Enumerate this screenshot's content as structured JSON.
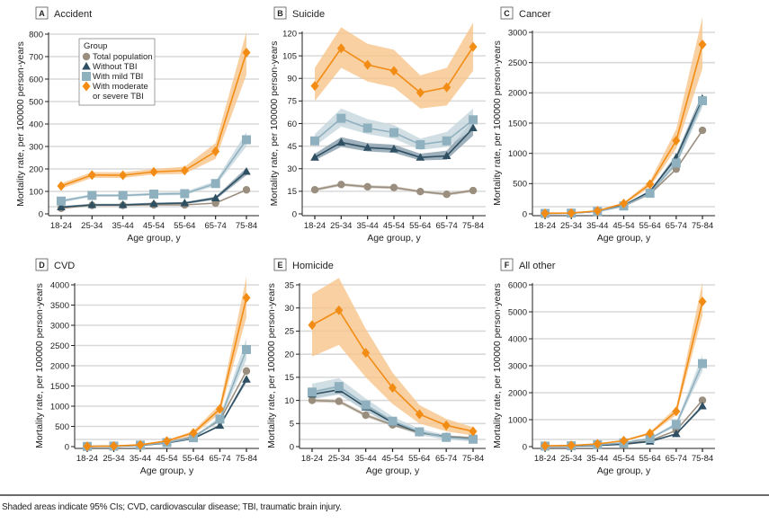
{
  "figure": {
    "footnote": "Shaded areas indicate 95% CIs; CVD, cardiovascular disease; TBI, traumatic brain injury.",
    "legend": {
      "title": "Group",
      "entries": [
        {
          "key": "total",
          "label": "Total population",
          "marker": "circle",
          "color": "#9a8e7e"
        },
        {
          "key": "without",
          "label": "Without TBI",
          "marker": "triangle",
          "color": "#2f4f62"
        },
        {
          "key": "mild",
          "label": "With mild TBI",
          "marker": "square",
          "color": "#8fb0be"
        },
        {
          "key": "modsev",
          "label": "With moderate",
          "label2": "or severe TBI",
          "marker": "diamond",
          "color": "#f28c14"
        }
      ]
    },
    "colors": {
      "total": "#9a8e7e",
      "without": "#2f4f62",
      "mild": "#8fb0be",
      "modsev": "#f28c14",
      "band_modsev": "#f8c48a",
      "band_mild": "#c5d7df",
      "band_without": "#7c96a4",
      "gridline": "#d9d9d9"
    }
  },
  "chart_data": [
    {
      "panel": "A",
      "type": "line",
      "title": "Accident",
      "xlabel": "Age group, y",
      "ylabel": "Mortality rate, per 100000 person-years",
      "categories": [
        "18-24",
        "25-34",
        "35-44",
        "45-54",
        "55-64",
        "65-74",
        "75-84"
      ],
      "ylim": [
        0,
        800
      ],
      "yticks": [
        0,
        100,
        200,
        300,
        400,
        500,
        600,
        700,
        800
      ],
      "grid": true,
      "legend": "top-left",
      "series": [
        {
          "key": "total",
          "name": "Total population",
          "values": [
            25,
            38,
            38,
            40,
            40,
            48,
            107
          ]
        },
        {
          "key": "without",
          "name": "Without TBI",
          "values": [
            30,
            40,
            40,
            45,
            48,
            70,
            188
          ],
          "ci_low": [
            25,
            36,
            36,
            40,
            43,
            63,
            172
          ],
          "ci_high": [
            35,
            45,
            45,
            50,
            53,
            77,
            205
          ]
        },
        {
          "key": "mild",
          "name": "With mild TBI",
          "values": [
            57,
            82,
            82,
            88,
            90,
            135,
            330
          ],
          "ci_low": [
            50,
            76,
            76,
            82,
            84,
            124,
            300
          ],
          "ci_high": [
            64,
            88,
            88,
            94,
            98,
            146,
            365
          ]
        },
        {
          "key": "modsev",
          "name": "With moderate or severe TBI",
          "values": [
            124,
            173,
            172,
            187,
            193,
            278,
            718
          ],
          "ci_low": [
            112,
            160,
            160,
            175,
            178,
            245,
            620
          ],
          "ci_high": [
            136,
            186,
            185,
            200,
            210,
            315,
            810
          ]
        }
      ]
    },
    {
      "panel": "B",
      "type": "line",
      "title": "Suicide",
      "xlabel": "Age group, y",
      "ylabel": "Mortality rate, per 100000 person-years",
      "categories": [
        "18-24",
        "25-34",
        "35-44",
        "45-54",
        "55-64",
        "65-74",
        "75-84"
      ],
      "ylim": [
        0,
        120
      ],
      "yticks": [
        0,
        15,
        30,
        45,
        60,
        75,
        90,
        105,
        120
      ],
      "grid": true,
      "series": [
        {
          "key": "total",
          "name": "Total population",
          "values": [
            16,
            19.5,
            18,
            17.5,
            14.8,
            13,
            15.5
          ],
          "ci_low": [
            15,
            18.5,
            17,
            16.5,
            14,
            12,
            14.5
          ],
          "ci_high": [
            17,
            20.5,
            19,
            18.5,
            15.6,
            14,
            16.5
          ]
        },
        {
          "key": "without",
          "name": "Without TBI",
          "values": [
            37.5,
            47.5,
            44,
            43,
            37.5,
            38.5,
            57
          ],
          "ci_low": [
            35.5,
            44.5,
            41.5,
            40.5,
            35.5,
            36,
            52
          ],
          "ci_high": [
            40,
            51,
            47,
            46,
            40,
            42,
            62
          ]
        },
        {
          "key": "mild",
          "name": "With mild TBI",
          "values": [
            48.5,
            63.5,
            57,
            54,
            46,
            48.5,
            62.5
          ],
          "ci_low": [
            45,
            58,
            53,
            50,
            42.5,
            44.5,
            56
          ],
          "ci_high": [
            53,
            70,
            63,
            59,
            50,
            54.5,
            70
          ]
        },
        {
          "key": "modsev",
          "name": "With moderate or severe TBI",
          "values": [
            85,
            110,
            99,
            95,
            80.5,
            84,
            111
          ],
          "ci_low": [
            75,
            97,
            88,
            84,
            70,
            72,
            95
          ],
          "ci_high": [
            97,
            124,
            113,
            109,
            92,
            97,
            127
          ]
        }
      ]
    },
    {
      "panel": "C",
      "type": "line",
      "title": "Cancer",
      "xlabel": "Age group, y",
      "ylabel": "Mortality rate, per 100000 person-years",
      "categories": [
        "18-24",
        "25-34",
        "35-44",
        "45-54",
        "55-64",
        "65-74",
        "75-84"
      ],
      "ylim": [
        0,
        3000
      ],
      "yticks": [
        0,
        500,
        1000,
        1500,
        2000,
        2500,
        3000
      ],
      "grid": true,
      "series": [
        {
          "key": "total",
          "name": "Total population",
          "values": [
            8,
            12,
            40,
            130,
            330,
            740,
            1380
          ]
        },
        {
          "key": "without",
          "name": "Without TBI",
          "values": [
            8,
            12,
            42,
            140,
            370,
            930,
            1900
          ],
          "ci_low": [
            6,
            10,
            38,
            130,
            350,
            880,
            1800
          ],
          "ci_high": [
            10,
            14,
            46,
            150,
            390,
            980,
            2000
          ]
        },
        {
          "key": "mild",
          "name": "With mild TBI",
          "values": [
            8,
            12,
            40,
            130,
            340,
            840,
            1870
          ],
          "ci_low": [
            6,
            10,
            35,
            120,
            320,
            790,
            1760
          ],
          "ci_high": [
            10,
            14,
            45,
            140,
            360,
            890,
            1980
          ]
        },
        {
          "key": "modsev",
          "name": "With moderate or severe TBI",
          "values": [
            10,
            14,
            50,
            170,
            490,
            1210,
            2800
          ],
          "ci_low": [
            7,
            11,
            42,
            150,
            440,
            1080,
            2400
          ],
          "ci_high": [
            13,
            17,
            58,
            190,
            540,
            1400,
            3250
          ]
        }
      ]
    },
    {
      "panel": "D",
      "type": "line",
      "title": "CVD",
      "xlabel": "Age group, y",
      "ylabel": "Mortality rate, per 100000 person-years",
      "categories": [
        "18-24",
        "25-34",
        "35-44",
        "45-54",
        "55-64",
        "65-74",
        "75-84"
      ],
      "ylim": [
        0,
        4000
      ],
      "yticks": [
        0,
        500,
        1000,
        1500,
        2000,
        2500,
        3000,
        3500,
        4000
      ],
      "grid": true,
      "series": [
        {
          "key": "total",
          "name": "Total population",
          "values": [
            5,
            12,
            35,
            100,
            250,
            650,
            1870
          ]
        },
        {
          "key": "without",
          "name": "Without TBI",
          "values": [
            4,
            10,
            30,
            90,
            200,
            520,
            1660
          ],
          "ci_low": [
            3,
            8,
            26,
            84,
            188,
            495,
            1590
          ],
          "ci_high": [
            5,
            12,
            34,
            96,
            212,
            545,
            1730
          ]
        },
        {
          "key": "mild",
          "name": "With mild TBI",
          "values": [
            5,
            12,
            35,
            100,
            220,
            680,
            2400
          ],
          "ci_low": [
            3,
            9,
            30,
            90,
            200,
            620,
            2150
          ],
          "ci_high": [
            7,
            15,
            40,
            110,
            240,
            740,
            2680
          ]
        },
        {
          "key": "modsev",
          "name": "With moderate or severe TBI",
          "values": [
            8,
            16,
            45,
            140,
            340,
            930,
            3680
          ],
          "ci_low": [
            5,
            12,
            36,
            120,
            290,
            820,
            3200
          ],
          "ci_high": [
            11,
            20,
            54,
            160,
            390,
            1050,
            4200
          ]
        }
      ]
    },
    {
      "panel": "E",
      "type": "line",
      "title": "Homicide",
      "xlabel": "Age group, y",
      "ylabel": "Mortality rate, per 100000 person-years",
      "categories": [
        "18-24",
        "25-34",
        "35-44",
        "45-54",
        "55-64",
        "65-74",
        "75-84"
      ],
      "ylim": [
        0,
        35
      ],
      "yticks": [
        0,
        5,
        10,
        15,
        20,
        25,
        30,
        35
      ],
      "grid": true,
      "series": [
        {
          "key": "total",
          "name": "Total population",
          "values": [
            10,
            9.8,
            6.8,
            4.7,
            3.0,
            2.2,
            1.9
          ],
          "ci_low": [
            9.6,
            9.4,
            6.4,
            4.4,
            2.8,
            2.0,
            1.7
          ],
          "ci_high": [
            10.4,
            10.2,
            7.2,
            5.0,
            3.2,
            2.4,
            2.1
          ]
        },
        {
          "key": "without",
          "name": "Without TBI",
          "values": [
            11.3,
            12.3,
            8.5,
            5.2,
            3.1,
            2.1,
            1.6
          ],
          "ci_low": [
            10.5,
            11.3,
            7.8,
            4.7,
            2.8,
            1.8,
            1.3
          ],
          "ci_high": [
            12.1,
            13.3,
            9.2,
            5.7,
            3.4,
            2.4,
            1.9
          ]
        },
        {
          "key": "mild",
          "name": "With mild TBI",
          "values": [
            11.8,
            13,
            9,
            5.5,
            3.2,
            2.0,
            1.6
          ],
          "ci_low": [
            10.2,
            11.3,
            7.6,
            4.5,
            2.5,
            1.5,
            1.1
          ],
          "ci_high": [
            13.6,
            14.8,
            10.4,
            6.5,
            3.9,
            2.5,
            2.1
          ]
        },
        {
          "key": "modsev",
          "name": "With moderate or severe TBI",
          "values": [
            26.3,
            29.5,
            20.3,
            12.7,
            7.0,
            4.6,
            3.3
          ],
          "ci_low": [
            19.5,
            22,
            15,
            9.2,
            5.0,
            3.3,
            2.4
          ],
          "ci_high": [
            33,
            36.5,
            25.5,
            16,
            9.0,
            6.0,
            4.2
          ]
        }
      ]
    },
    {
      "panel": "F",
      "type": "line",
      "title": "All other",
      "xlabel": "Age group, y",
      "ylabel": "Mortality rate, per 100000 person-years",
      "categories": [
        "18-24",
        "25-34",
        "35-44",
        "45-54",
        "55-64",
        "65-74",
        "75-84"
      ],
      "ylim": [
        0,
        6000
      ],
      "yticks": [
        0,
        1000,
        2000,
        3000,
        4000,
        5000,
        6000
      ],
      "grid": true,
      "series": [
        {
          "key": "total",
          "name": "Total population",
          "values": [
            15,
            25,
            55,
            110,
            220,
            600,
            1720
          ]
        },
        {
          "key": "without",
          "name": "Without TBI",
          "values": [
            12,
            20,
            45,
            90,
            190,
            470,
            1500
          ],
          "ci_low": [
            10,
            17,
            40,
            82,
            178,
            445,
            1430
          ],
          "ci_high": [
            14,
            23,
            50,
            98,
            202,
            495,
            1570
          ]
        },
        {
          "key": "mild",
          "name": "With mild TBI",
          "values": [
            20,
            30,
            70,
            140,
            300,
            820,
            3080
          ],
          "ci_low": [
            16,
            25,
            60,
            125,
            270,
            740,
            2800
          ],
          "ci_high": [
            24,
            35,
            80,
            155,
            330,
            900,
            3400
          ]
        },
        {
          "key": "modsev",
          "name": "With moderate or severe TBI",
          "values": [
            30,
            45,
            100,
            220,
            490,
            1310,
            5380
          ],
          "ci_low": [
            24,
            38,
            86,
            195,
            440,
            1170,
            4850
          ],
          "ci_high": [
            36,
            52,
            114,
            245,
            540,
            1460,
            6100
          ]
        }
      ]
    }
  ]
}
